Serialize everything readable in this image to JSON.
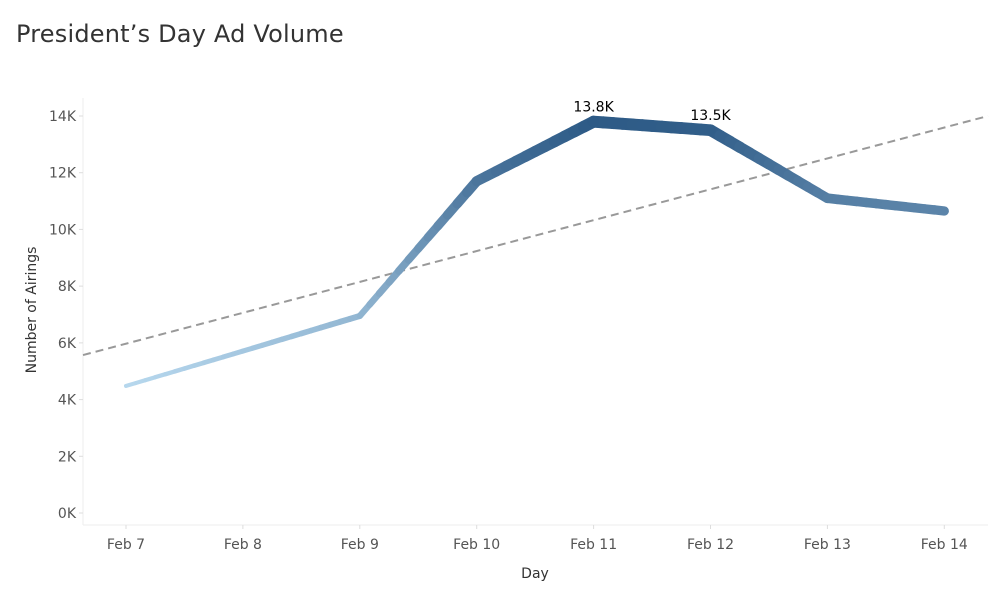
{
  "title": "President’s Day Ad Volume",
  "chart_data": {
    "type": "line",
    "title": "President’s Day Ad Volume",
    "xlabel": "Day",
    "ylabel": "Number of Airings",
    "categories": [
      "Feb 7",
      "Feb 8",
      "Feb 9",
      "Feb 10",
      "Feb 11",
      "Feb 12",
      "Feb 13",
      "Feb 14"
    ],
    "series": [
      {
        "name": "Number of Airings",
        "values": [
          4480,
          5710,
          6950,
          11700,
          13800,
          13500,
          11100,
          10650
        ]
      }
    ],
    "trend_line": {
      "style": "dashed",
      "color": "#999999",
      "start_value": 5570,
      "end_value": 14000
    },
    "data_labels": [
      {
        "category": "Feb 11",
        "text": "13.8K"
      },
      {
        "category": "Feb 12",
        "text": "13.5K"
      }
    ],
    "ylim": [
      0,
      14000
    ],
    "yticks": [
      0,
      2000,
      4000,
      6000,
      8000,
      10000,
      12000,
      14000
    ],
    "ytick_labels": [
      "0K",
      "2K",
      "4K",
      "6K",
      "8K",
      "10K",
      "12K",
      "14K"
    ],
    "grid": false,
    "legend": "none",
    "color_scale": {
      "low": "#b7d8ee",
      "high": "#2d5a86"
    }
  }
}
